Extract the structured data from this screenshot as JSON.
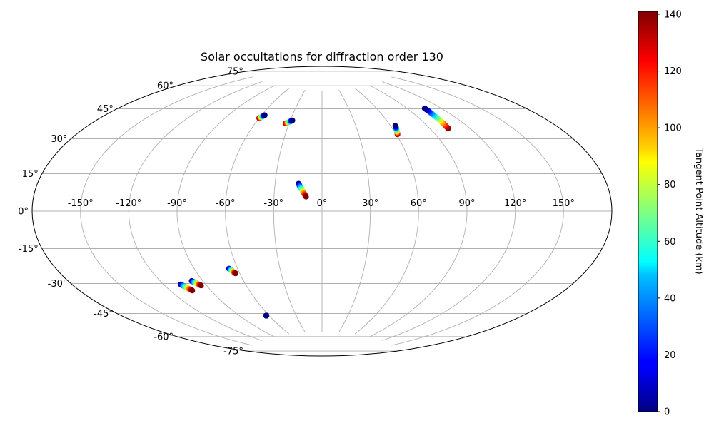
{
  "chart_data": {
    "type": "scatter",
    "title": "Solar occultations for diffraction order 130",
    "projection": "aitoff",
    "lon_ticks": [
      -150,
      -120,
      -90,
      -60,
      -30,
      0,
      30,
      60,
      90,
      120,
      150
    ],
    "lon_tick_labels": [
      "-150°",
      "-120°",
      "-90°",
      "-60°",
      "-30°",
      "0°",
      "30°",
      "60°",
      "90°",
      "120°",
      "150°"
    ],
    "lat_ticks": [
      75,
      60,
      45,
      30,
      15,
      0,
      -15,
      -30,
      -45,
      -60,
      -75
    ],
    "lat_tick_labels": [
      "75°",
      "60°",
      "45°",
      "30°",
      "15°",
      "0°",
      "-15°",
      "-30°",
      "-45°",
      "-60°",
      "-75°"
    ],
    "grid": true,
    "colorbar": {
      "label": "Tangent Point Altitude (km)",
      "colormap": "jet",
      "range": [
        0,
        141
      ],
      "ticks": [
        0,
        20,
        40,
        60,
        80,
        100,
        120,
        140
      ],
      "placement": "right"
    },
    "series": [
      {
        "lon": [
          -60,
          -57
        ],
        "lat": [
          56,
          58
        ],
        "alt": [
          141,
          0
        ]
      },
      {
        "lon": [
          -33,
          -28
        ],
        "lat": [
          54,
          56
        ],
        "alt": [
          141,
          0
        ]
      },
      {
        "lon": [
          -15,
          -10
        ],
        "lat": [
          17,
          9
        ],
        "alt": [
          0,
          141
        ]
      },
      {
        "lon": [
          61,
          64
        ],
        "lat": [
          46,
          51
        ],
        "alt": [
          141,
          0
        ]
      },
      {
        "lon": [
          104,
          106
        ],
        "lat": [
          46,
          58
        ],
        "alt": [
          141,
          0
        ]
      },
      {
        "lon": [
          -108,
          -104
        ],
        "lat": [
          -40,
          -44
        ],
        "alt": [
          0,
          141
        ]
      },
      {
        "lon": [
          -98,
          -94
        ],
        "lat": [
          -39,
          -42
        ],
        "alt": [
          0,
          141
        ]
      },
      {
        "lon": [
          -66,
          -63
        ],
        "lat": [
          -34,
          -37
        ],
        "alt": [
          0,
          141
        ]
      },
      {
        "lon": [
          -63,
          -63
        ],
        "lat": [
          -63,
          -63
        ],
        "alt": [
          0,
          0
        ]
      }
    ]
  }
}
